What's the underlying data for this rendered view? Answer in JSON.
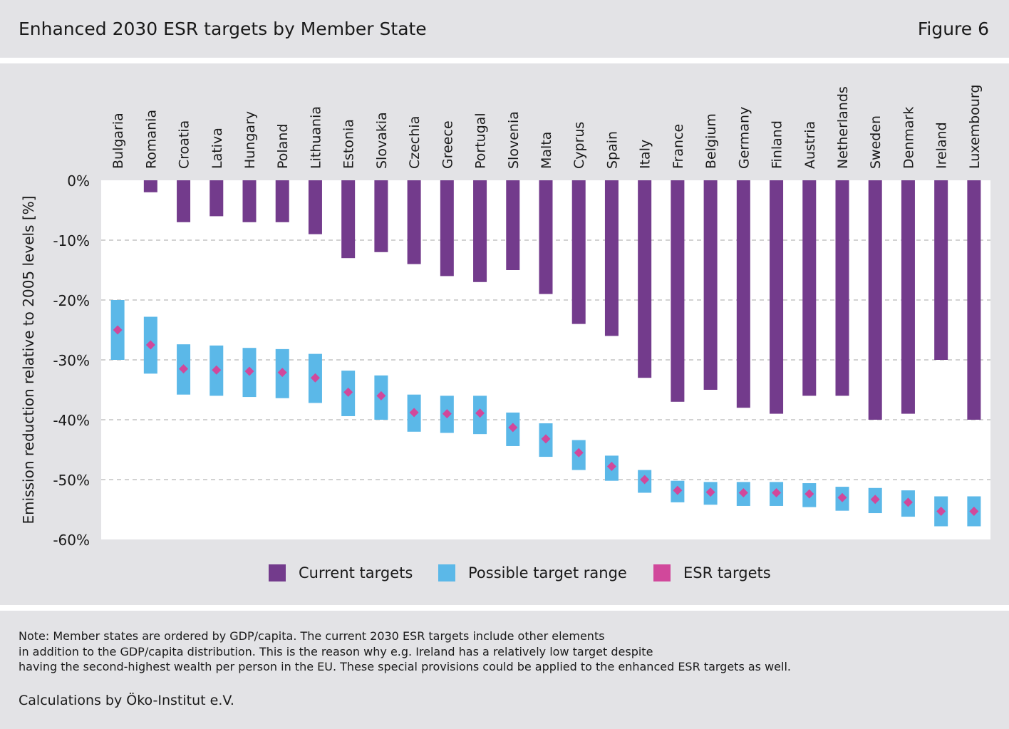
{
  "header": {
    "title": "Enhanced 2030 ESR targets by Member State",
    "figure_label": "Figure 6"
  },
  "colors": {
    "current": "#733b8c",
    "range": "#5bb8e8",
    "esr": "#d1489b",
    "background": "#e3e3e6",
    "plot_bg": "#ffffff",
    "grid": "#b8b8b8"
  },
  "legend": {
    "current_label": "Current targets",
    "range_label": "Possible target range",
    "esr_label": "ESR targets"
  },
  "footer": {
    "note_lines": [
      "Note: Member states are ordered by GDP/capita. The current 2030 ESR targets include other elements",
      "in addition to the GDP/capita distribution. This is the reason why e.g. Ireland has a relatively low target despite",
      "having the second-highest wealth per person in the EU. These special provisions could be applied to the enhanced ESR targets as well."
    ],
    "calculations": "Calculations by Öko-Institut e.V."
  },
  "chart_data": {
    "type": "bar",
    "ylabel": "Emission reduction relative to 2005 levels [%]",
    "ylim": [
      -60,
      0
    ],
    "yticks": [
      0,
      -10,
      -20,
      -30,
      -40,
      -50,
      -60
    ],
    "ytick_labels": [
      "0%",
      "-10%",
      "-20%",
      "-30%",
      "-40%",
      "-50%",
      "-60%"
    ],
    "grid": "horizontal dashed",
    "legend_position": "bottom",
    "categories": [
      "Bulgaria",
      "Romania",
      "Croatia",
      "Lativa",
      "Hungary",
      "Poland",
      "Lithuania",
      "Estonia",
      "Slovakia",
      "Czechia",
      "Greece",
      "Portugal",
      "Slovenia",
      "Malta",
      "Cyprus",
      "Spain",
      "Italy",
      "France",
      "Belgium",
      "Germany",
      "Finland",
      "Austria",
      "Netherlands",
      "Sweden",
      "Denmark",
      "Ireland",
      "Luxembourg"
    ],
    "series": [
      {
        "name": "Current targets",
        "type": "bar",
        "values": [
          0,
          -2,
          -7,
          -6,
          -7,
          -7,
          -9,
          -13,
          -12,
          -14,
          -16,
          -17,
          -15,
          -19,
          -24,
          -26,
          -33,
          -37,
          -35,
          -38,
          -39,
          -36,
          -36,
          -40,
          -39,
          -30,
          -40
        ]
      },
      {
        "name": "Possible target range",
        "type": "range",
        "low": [
          -30,
          -32.3,
          -35.8,
          -36,
          -36.2,
          -36.4,
          -37.2,
          -39.4,
          -40,
          -42,
          -42.2,
          -42.4,
          -44.4,
          -46.2,
          -48.4,
          -50.2,
          -52.2,
          -53.8,
          -54.2,
          -54.4,
          -54.4,
          -54.6,
          -55.2,
          -55.6,
          -56.2,
          -57.8,
          -57.8
        ],
        "high": [
          -20,
          -22.8,
          -27.4,
          -27.6,
          -28,
          -28.2,
          -29,
          -31.8,
          -32.6,
          -35.8,
          -36,
          -36,
          -38.8,
          -40.6,
          -43.4,
          -46,
          -48.4,
          -50.2,
          -50.4,
          -50.4,
          -50.4,
          -50.6,
          -51.2,
          -51.4,
          -51.8,
          -52.8,
          -52.8
        ]
      },
      {
        "name": "ESR targets",
        "type": "marker",
        "values": [
          -25,
          -27.5,
          -31.5,
          -31.7,
          -31.9,
          -32.1,
          -33,
          -35.4,
          -36,
          -38.8,
          -39,
          -38.9,
          -41.3,
          -43.2,
          -45.5,
          -47.8,
          -50,
          -51.8,
          -52.1,
          -52.2,
          -52.2,
          -52.4,
          -53,
          -53.3,
          -53.8,
          -55.3,
          -55.3
        ]
      }
    ]
  }
}
